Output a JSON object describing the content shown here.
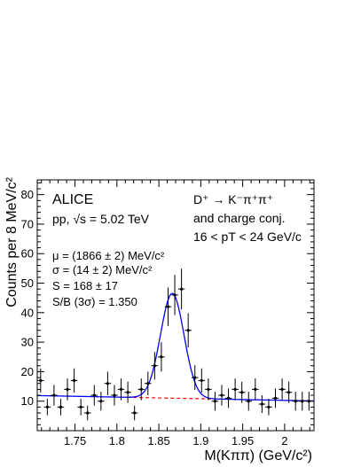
{
  "chart_data": {
    "type": "scatter",
    "title": "",
    "xlabel": "M(Kππ) (GeV/c²)",
    "ylabel": "Counts per 8 MeV/c²",
    "xlim": [
      1.705,
      2.035
    ],
    "ylim": [
      0,
      85
    ],
    "x_ticks": [
      1.75,
      1.8,
      1.85,
      1.9,
      1.95,
      2.0
    ],
    "x_tick_labels": [
      "1.75",
      "1.8",
      "1.85",
      "1.9",
      "1.95",
      "2"
    ],
    "y_ticks": [
      10,
      20,
      30,
      40,
      50,
      60,
      70,
      80
    ],
    "y_tick_labels": [
      "10",
      "20",
      "30",
      "40",
      "50",
      "60",
      "70",
      "80"
    ],
    "annotations": {
      "experiment": "ALICE",
      "collision_system": "pp, √s = 5.02 TeV",
      "mu": "μ = (1866 ± 2) MeV/c²",
      "sigma": "σ = (14 ± 2) MeV/c²",
      "signal": "S = 168 ± 17",
      "sb": "S/B (3σ) = 1.350",
      "decay": "D⁺ → K⁻π⁺π⁺",
      "charge_conj": "and charge conj.",
      "pt_range": "16 < pT < 24 GeV/c"
    },
    "series": [
      {
        "type": "points_with_errors",
        "x": [
          1.709,
          1.717,
          1.725,
          1.733,
          1.741,
          1.749,
          1.757,
          1.765,
          1.773,
          1.781,
          1.789,
          1.797,
          1.805,
          1.813,
          1.821,
          1.829,
          1.837,
          1.845,
          1.853,
          1.861,
          1.869,
          1.877,
          1.885,
          1.893,
          1.901,
          1.909,
          1.917,
          1.925,
          1.933,
          1.941,
          1.949,
          1.957,
          1.965,
          1.973,
          1.981,
          1.989,
          1.997,
          2.005,
          2.013,
          2.021,
          2.029
        ],
        "y": [
          17,
          8,
          12,
          8,
          14,
          17,
          8,
          6,
          12,
          10,
          16,
          12,
          14,
          13,
          6,
          14,
          16,
          22,
          25,
          42,
          46,
          48,
          34,
          18,
          17,
          14,
          10,
          12,
          11,
          14,
          13,
          10,
          14,
          9,
          8,
          11,
          14,
          13,
          10,
          10,
          10
        ],
        "y_err": [
          4.1,
          2.8,
          3.5,
          2.8,
          3.7,
          4.1,
          2.8,
          2.5,
          3.5,
          3.2,
          4.0,
          3.5,
          3.7,
          3.6,
          2.5,
          3.7,
          4.0,
          4.7,
          5.0,
          6.5,
          6.8,
          6.9,
          5.8,
          4.2,
          4.1,
          3.7,
          3.2,
          3.5,
          3.3,
          3.7,
          3.6,
          3.2,
          3.7,
          3.0,
          2.8,
          3.3,
          3.7,
          3.6,
          3.2,
          3.2,
          3.2
        ],
        "x_err": 0.004
      },
      {
        "type": "fit",
        "model": "gaussian + linear background",
        "mu": 1.866,
        "sigma": 0.014,
        "amplitude": 35.5,
        "background_at_1705": 11.9,
        "background_slope_per_GeV": -5.5,
        "color": "#0000ff"
      },
      {
        "type": "background",
        "style": "dashed",
        "color": "#ff0000",
        "x_range": [
          1.812,
          1.912
        ]
      }
    ]
  }
}
